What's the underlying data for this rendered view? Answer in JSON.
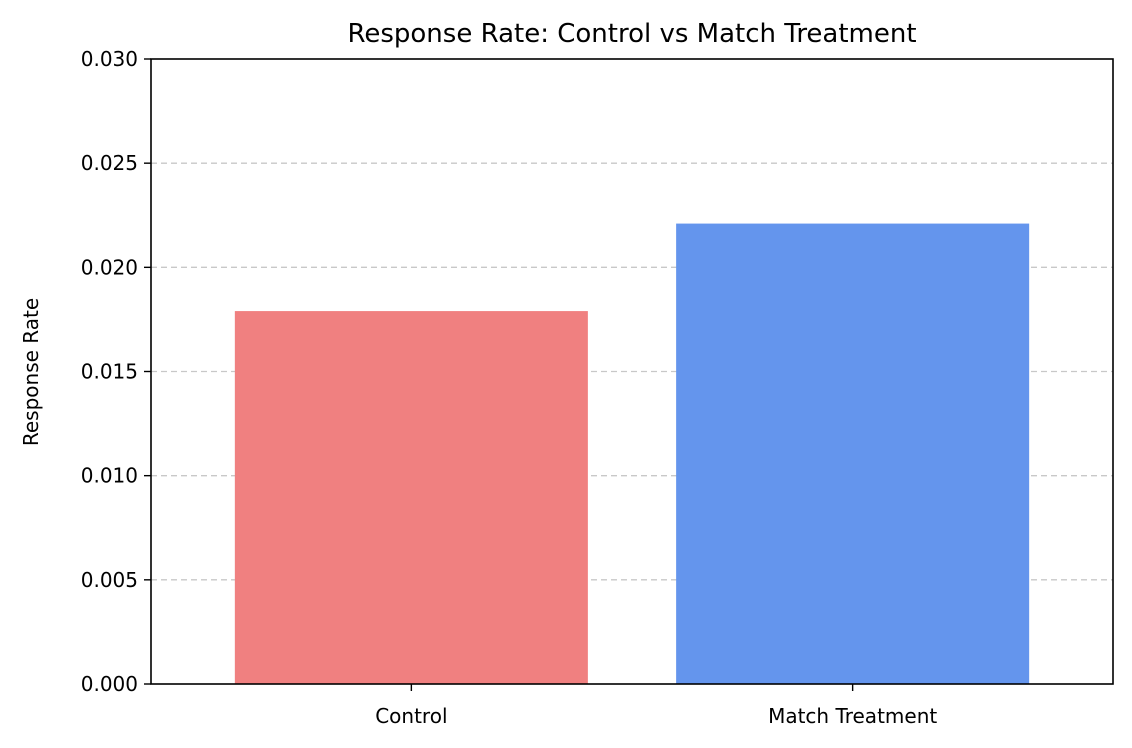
{
  "chart_data": {
    "type": "bar",
    "title": "Response Rate: Control vs Match Treatment",
    "xlabel": "",
    "ylabel": "Response Rate",
    "categories": [
      "Control",
      "Match Treatment"
    ],
    "values": [
      0.0179,
      0.0221
    ],
    "colors": [
      "#f08080",
      "#6495ed"
    ],
    "ylim": [
      0,
      0.03
    ],
    "yticks": [
      0.0,
      0.005,
      0.01,
      0.015,
      0.02,
      0.025,
      0.03
    ],
    "ytick_labels": [
      "0.000",
      "0.005",
      "0.010",
      "0.015",
      "0.020",
      "0.025",
      "0.030"
    ],
    "grid": {
      "axis": "y",
      "style": "dashed",
      "color": "#c8c8c8"
    },
    "legend": "none"
  }
}
